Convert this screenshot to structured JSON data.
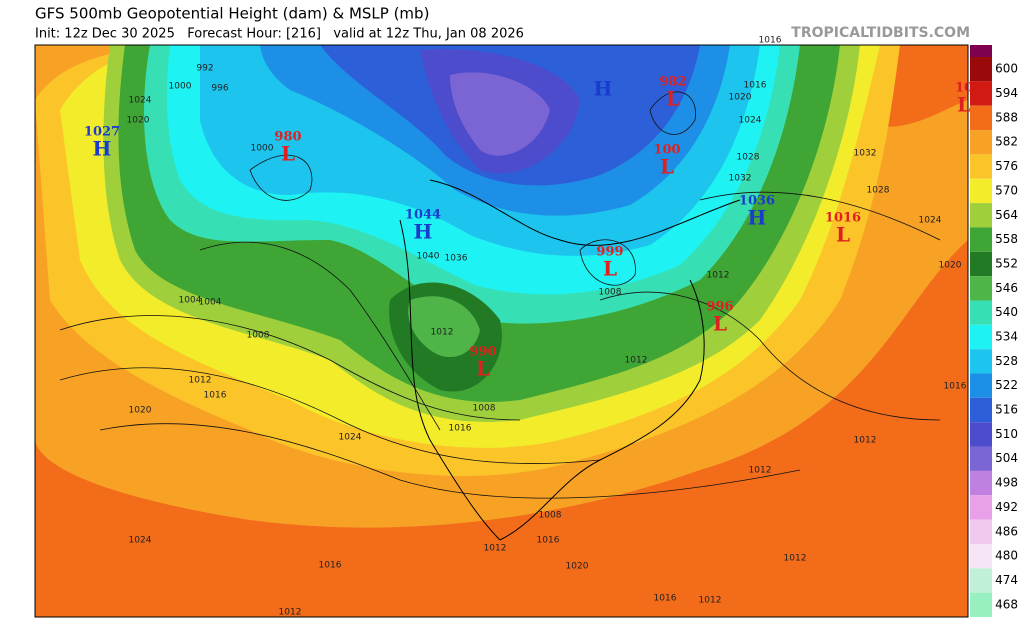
{
  "header": {
    "title": "GFS 500mb Geopotential Height (dam) & MSLP (mb)",
    "subtitle": "Init: 12z Dec 30 2025   Forecast Hour: [216]   valid at 12z Thu, Jan 08 2026",
    "source": "TROPICALTIDBITS.COM"
  },
  "colorbar": {
    "levels": [
      600,
      594,
      588,
      582,
      576,
      570,
      564,
      558,
      552,
      546,
      540,
      534,
      528,
      522,
      516,
      510,
      504,
      498,
      492,
      486,
      480,
      474,
      468
    ],
    "colors": [
      "#9b0a0a",
      "#d01a12",
      "#f26c1a",
      "#f8a225",
      "#fbc52a",
      "#f3ec2a",
      "#9fd03c",
      "#3fa535",
      "#237a25",
      "#4fb548",
      "#37e0b4",
      "#1ef2f2",
      "#1cc4ee",
      "#1d8fe6",
      "#2d5fd8",
      "#4c4ccc",
      "#7b64d4",
      "#c080e0",
      "#e8a0e8",
      "#f0c8f0",
      "#f4e4f4",
      "#c0f0d8",
      "#98f0c0"
    ]
  },
  "pressure_centers": {
    "high_color": "#1a3ccc",
    "low_color": "#e02020",
    "centers": [
      {
        "kind": "H",
        "pressure": 1027
      },
      {
        "kind": "L",
        "pressure": 980
      },
      {
        "kind": "H",
        "pressure": 1044
      },
      {
        "kind": "H"
      },
      {
        "kind": "L",
        "pressure": 982
      },
      {
        "kind": "L",
        "pressure": 100
      },
      {
        "kind": "H",
        "pressure": 1036
      },
      {
        "kind": "L",
        "pressure": 1016
      },
      {
        "kind": "L",
        "pressure": 999
      },
      {
        "kind": "L",
        "pressure": 996
      },
      {
        "kind": "L",
        "pressure": 990
      },
      {
        "kind": "L",
        "pressure": 10
      }
    ]
  },
  "isobar_labels": [
    992,
    996,
    1000,
    1004,
    1008,
    1012,
    1016,
    1020,
    1024,
    1024,
    1016,
    1008,
    1012,
    1016,
    1020,
    1016,
    1012,
    1008,
    1012,
    1016,
    1012,
    1012,
    1012,
    1020,
    1024,
    1028,
    1032,
    1028,
    1024,
    1020,
    1016,
    1012,
    1016,
    1004,
    1000,
    1024,
    1020,
    1040,
    1036,
    1032,
    1012,
    1008,
    1012,
    1016
  ]
}
